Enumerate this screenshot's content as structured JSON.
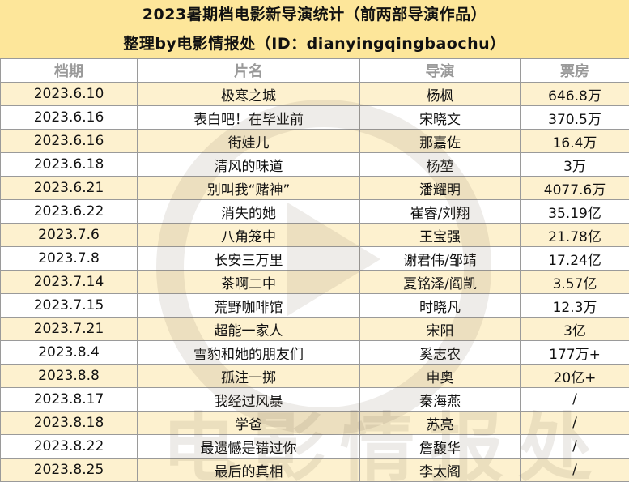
{
  "title": {
    "line1": "2023暑期档电影新导演统计（前两部导演作品）",
    "line2": "整理by电影情报处（ID：dianyingqingbaochu）"
  },
  "table": {
    "headers": [
      "档期",
      "片名",
      "导演",
      "票房"
    ],
    "rows": [
      {
        "date": "2023.6.10",
        "film": "极寒之城",
        "director": "杨枫",
        "box_office": "646.8万"
      },
      {
        "date": "2023.6.16",
        "film": "表白吧！在毕业前",
        "director": "宋晓文",
        "box_office": "370.5万"
      },
      {
        "date": "2023.6.16",
        "film": "街娃儿",
        "director": "那嘉佐",
        "box_office": "16.4万"
      },
      {
        "date": "2023.6.18",
        "film": "清风的味道",
        "director": "杨堃",
        "box_office": "3万"
      },
      {
        "date": "2023.6.21",
        "film": "别叫我“赌神”",
        "director": "潘耀明",
        "box_office": "4077.6万"
      },
      {
        "date": "2023.6.22",
        "film": "消失的她",
        "director": "崔睿/刘翔",
        "box_office": "35.19亿"
      },
      {
        "date": "2023.7.6",
        "film": "八角笼中",
        "director": "王宝强",
        "box_office": "21.78亿"
      },
      {
        "date": "2023.7.8",
        "film": "长安三万里",
        "director": "谢君伟/邹靖",
        "box_office": "17.24亿"
      },
      {
        "date": "2023.7.14",
        "film": "茶啊二中",
        "director": "夏铭泽/阎凯",
        "box_office": "3.57亿"
      },
      {
        "date": "2023.7.15",
        "film": "荒野咖啡馆",
        "director": "时晓凡",
        "box_office": "12.3万"
      },
      {
        "date": "2023.7.21",
        "film": "超能一家人",
        "director": "宋阳",
        "box_office": "3亿"
      },
      {
        "date": "2023.8.4",
        "film": "雪豹和她的朋友们",
        "director": "奚志农",
        "box_office": "177万+"
      },
      {
        "date": "2023.8.8",
        "film": "孤注一掷",
        "director": "申奥",
        "box_office": "20亿+"
      },
      {
        "date": "2023.8.17",
        "film": "我经过风暴",
        "director": "秦海燕",
        "box_office": "/"
      },
      {
        "date": "2023.8.18",
        "film": "学爸",
        "director": "苏亮",
        "box_office": "/"
      },
      {
        "date": "2023.8.22",
        "film": "最遗憾是错过你",
        "director": "詹馥华",
        "box_office": "/"
      },
      {
        "date": "2023.8.25",
        "film": "最后的真相",
        "director": "李太阁",
        "box_office": "/"
      }
    ]
  },
  "watermark": {
    "text": "电影情报处",
    "icon": "film-reel-logo-icon"
  }
}
